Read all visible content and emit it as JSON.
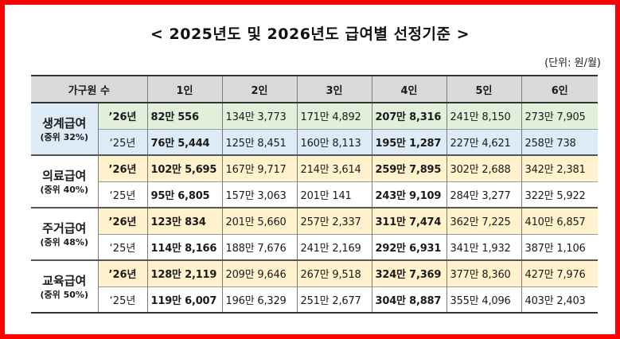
{
  "title": "< 2025년도 및 2026년도 급여별 선정기준 >",
  "unit": "(단위: 원/월)",
  "header": {
    "household": "가구원 수",
    "columns": [
      "1인",
      "2인",
      "3인",
      "4인",
      "5인",
      "6인"
    ]
  },
  "groups": [
    {
      "name": "생계급여",
      "sub": "(중위 32%)",
      "rows": [
        {
          "year": "’26년",
          "values": [
            "82만 556",
            "134만 3,773",
            "171만 4,892",
            "207만 8,316",
            "241만 8,150",
            "273만 7,905"
          ]
        },
        {
          "year": "‘25년",
          "values": [
            "76만 5,444",
            "125만 8,451",
            "160만 8,113",
            "195만 1,287",
            "227만 4,621",
            "258만 738"
          ]
        }
      ]
    },
    {
      "name": "의료급여",
      "sub": "(중위 40%)",
      "rows": [
        {
          "year": "’26년",
          "values": [
            "102만 5,695",
            "167만 9,717",
            "214만 3,614",
            "259만 7,895",
            "302만 2,688",
            "342만 2,381"
          ]
        },
        {
          "year": "‘25년",
          "values": [
            "95만 6,805",
            "157만 3,063",
            "201만 141",
            "243만 9,109",
            "284만 3,277",
            "322만 5,922"
          ]
        }
      ]
    },
    {
      "name": "주거급여",
      "sub": "(중위 48%)",
      "rows": [
        {
          "year": "’26년",
          "values": [
            "123만 834",
            "201만 5,660",
            "257만 2,337",
            "311만 7,474",
            "362만 7,225",
            "410만 6,857"
          ]
        },
        {
          "year": "‘25년",
          "values": [
            "114만 8,166",
            "188만 7,676",
            "241만 2,169",
            "292만 6,931",
            "341만 1,932",
            "387만 1,106"
          ]
        }
      ]
    },
    {
      "name": "교육급여",
      "sub": "(중위 50%)",
      "rows": [
        {
          "year": "’26년",
          "values": [
            "128만 2,119",
            "209만 9,646",
            "267만 9,518",
            "324만 7,369",
            "377만 8,360",
            "427만 7,976"
          ]
        },
        {
          "year": "‘25년",
          "values": [
            "119만 6,007",
            "196만 6,329",
            "251만 2,677",
            "304만 8,887",
            "355만 4,096",
            "403만 2,403"
          ]
        }
      ]
    }
  ],
  "colors": {
    "border": "#ff0000",
    "header_bg": "#d9d9d9",
    "livelihood_2026": "#e2efda",
    "livelihood_2025": "#ddebf7",
    "highlight_2026": "#fff2cc"
  }
}
